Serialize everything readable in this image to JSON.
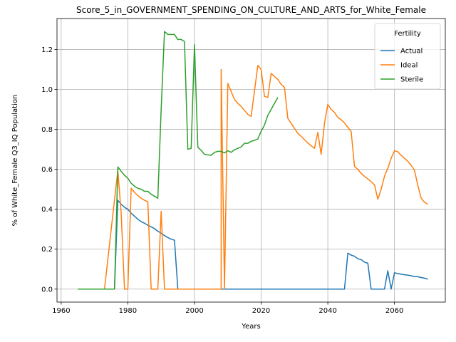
{
  "chart_data": {
    "type": "line",
    "title": "Score_5_in_GOVERNMENT_SPENDING_ON_CULTURE_AND_ARTS_for_White_Female",
    "xlabel": "Years",
    "ylabel": "% of White_Female Q3_IQ Population",
    "xlim": [
      1958.75,
      2075.25
    ],
    "ylim": [
      -0.065,
      1.355
    ],
    "xticks": [
      1960,
      1980,
      2000,
      2020,
      2040,
      2060
    ],
    "yticks": [
      0.0,
      0.2,
      0.4,
      0.6,
      0.8,
      1.0,
      1.2
    ],
    "ytick_labels": [
      "0.0",
      "0.2",
      "0.4",
      "0.6",
      "0.8",
      "1.0",
      "1.2"
    ],
    "grid": true,
    "legend": {
      "title": "Fertility",
      "placement": "top-right"
    },
    "series": [
      {
        "name": "Actual",
        "color": "#1f77b4",
        "points": [
          [
            1965,
            0
          ],
          [
            1976,
            0
          ],
          [
            1977,
            0.445
          ],
          [
            1978,
            0.425
          ],
          [
            1979,
            0.41
          ],
          [
            1980,
            0.4
          ],
          [
            1981,
            0.38
          ],
          [
            1982,
            0.365
          ],
          [
            1983,
            0.35
          ],
          [
            1984,
            0.338
          ],
          [
            1985,
            0.33
          ],
          [
            1986,
            0.32
          ],
          [
            1987,
            0.312
          ],
          [
            1988,
            0.303
          ],
          [
            1989,
            0.29
          ],
          [
            1990,
            0.28
          ],
          [
            1991,
            0.268
          ],
          [
            1992,
            0.258
          ],
          [
            1993,
            0.25
          ],
          [
            1994,
            0.245
          ],
          [
            1995,
            0
          ],
          [
            2045,
            0
          ],
          [
            2046,
            0.18
          ],
          [
            2047,
            0.17
          ],
          [
            2048,
            0.165
          ],
          [
            2049,
            0.152
          ],
          [
            2050,
            0.148
          ],
          [
            2051,
            0.135
          ],
          [
            2052,
            0.13
          ],
          [
            2053,
            0
          ],
          [
            2057,
            0
          ],
          [
            2058,
            0.092
          ],
          [
            2059,
            0
          ],
          [
            2060,
            0.082
          ],
          [
            2061,
            0.078
          ],
          [
            2062,
            0.075
          ],
          [
            2063,
            0.072
          ],
          [
            2064,
            0.07
          ],
          [
            2065,
            0.067
          ],
          [
            2066,
            0.063
          ],
          [
            2067,
            0.062
          ],
          [
            2068,
            0.058
          ],
          [
            2069,
            0.055
          ],
          [
            2070,
            0.05
          ]
        ]
      },
      {
        "name": "Ideal",
        "color": "#ff7f0e",
        "points": [
          [
            1965,
            0
          ],
          [
            1973,
            0
          ],
          [
            1977,
            0.595
          ],
          [
            1978,
            0.38
          ],
          [
            1979,
            0
          ],
          [
            1980,
            0
          ],
          [
            1981,
            0.505
          ],
          [
            1982,
            0.485
          ],
          [
            1983,
            0.468
          ],
          [
            1984,
            0.455
          ],
          [
            1985,
            0.445
          ],
          [
            1986,
            0.438
          ],
          [
            1987,
            0
          ],
          [
            1989,
            0
          ],
          [
            1990,
            0.39
          ],
          [
            1991,
            0
          ],
          [
            2008,
            0
          ],
          [
            2008,
            1.1
          ],
          [
            2009,
            0
          ],
          [
            2010,
            1.03
          ],
          [
            2011,
            0.99
          ],
          [
            2012,
            0.95
          ],
          [
            2013,
            0.93
          ],
          [
            2014,
            0.915
          ],
          [
            2015,
            0.895
          ],
          [
            2016,
            0.875
          ],
          [
            2017,
            0.865
          ],
          [
            2019,
            1.12
          ],
          [
            2020,
            1.1
          ],
          [
            2021,
            0.965
          ],
          [
            2022,
            0.96
          ],
          [
            2023,
            1.08
          ],
          [
            2024,
            1.065
          ],
          [
            2025,
            1.05
          ],
          [
            2026,
            1.025
          ],
          [
            2027,
            1.01
          ],
          [
            2028,
            0.855
          ],
          [
            2029,
            0.83
          ],
          [
            2030,
            0.805
          ],
          [
            2031,
            0.78
          ],
          [
            2032,
            0.765
          ],
          [
            2033,
            0.748
          ],
          [
            2034,
            0.732
          ],
          [
            2035,
            0.718
          ],
          [
            2036,
            0.705
          ],
          [
            2037,
            0.785
          ],
          [
            2038,
            0.675
          ],
          [
            2039,
            0.83
          ],
          [
            2040,
            0.925
          ],
          [
            2041,
            0.9
          ],
          [
            2042,
            0.885
          ],
          [
            2043,
            0.86
          ],
          [
            2044,
            0.848
          ],
          [
            2045,
            0.832
          ],
          [
            2046,
            0.81
          ],
          [
            2047,
            0.79
          ],
          [
            2048,
            0.615
          ],
          [
            2049,
            0.6
          ],
          [
            2050,
            0.58
          ],
          [
            2051,
            0.565
          ],
          [
            2052,
            0.552
          ],
          [
            2053,
            0.538
          ],
          [
            2054,
            0.522
          ],
          [
            2055,
            0.45
          ],
          [
            2056,
            0.5
          ],
          [
            2057,
            0.565
          ],
          [
            2058,
            0.605
          ],
          [
            2059,
            0.655
          ],
          [
            2060,
            0.693
          ],
          [
            2061,
            0.688
          ],
          [
            2062,
            0.67
          ],
          [
            2063,
            0.655
          ],
          [
            2064,
            0.64
          ],
          [
            2065,
            0.62
          ],
          [
            2066,
            0.595
          ],
          [
            2067,
            0.52
          ],
          [
            2068,
            0.455
          ],
          [
            2069,
            0.435
          ],
          [
            2070,
            0.425
          ]
        ]
      },
      {
        "name": "Sterile",
        "color": "#2ca02c",
        "points": [
          [
            1965,
            0
          ],
          [
            1976,
            0
          ],
          [
            1977,
            0.612
          ],
          [
            1978,
            0.59
          ],
          [
            1979,
            0.57
          ],
          [
            1980,
            0.555
          ],
          [
            1981,
            0.53
          ],
          [
            1982,
            0.515
          ],
          [
            1983,
            0.505
          ],
          [
            1984,
            0.5
          ],
          [
            1985,
            0.49
          ],
          [
            1986,
            0.49
          ],
          [
            1987,
            0.475
          ],
          [
            1988,
            0.465
          ],
          [
            1989,
            0.455
          ],
          [
            1990,
            0.9
          ],
          [
            1991,
            1.29
          ],
          [
            1992,
            1.275
          ],
          [
            1993,
            1.275
          ],
          [
            1994,
            1.275
          ],
          [
            1995,
            1.25
          ],
          [
            1996,
            1.25
          ],
          [
            1997,
            1.24
          ],
          [
            1998,
            0.7
          ],
          [
            1999,
            0.705
          ],
          [
            2000,
            1.225
          ],
          [
            2001,
            0.71
          ],
          [
            2002,
            0.695
          ],
          [
            2003,
            0.675
          ],
          [
            2004,
            0.672
          ],
          [
            2005,
            0.67
          ],
          [
            2006,
            0.685
          ],
          [
            2007,
            0.69
          ],
          [
            2008,
            0.69
          ],
          [
            2009,
            0.682
          ],
          [
            2010,
            0.693
          ],
          [
            2011,
            0.685
          ],
          [
            2012,
            0.698
          ],
          [
            2013,
            0.705
          ],
          [
            2014,
            0.712
          ],
          [
            2015,
            0.73
          ],
          [
            2016,
            0.73
          ],
          [
            2017,
            0.74
          ],
          [
            2018,
            0.745
          ],
          [
            2019,
            0.752
          ],
          [
            2020,
            0.79
          ],
          [
            2021,
            0.822
          ],
          [
            2022,
            0.87
          ],
          [
            2023,
            0.9
          ],
          [
            2024,
            0.93
          ],
          [
            2025,
            0.96
          ]
        ]
      }
    ]
  }
}
